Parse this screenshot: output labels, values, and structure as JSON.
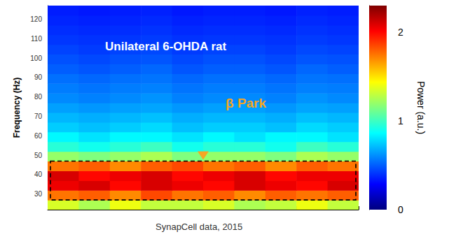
{
  "chart_data": {
    "type": "heatmap",
    "title": "Unilateral 6-OHDA rat",
    "band_label": "β Park",
    "band": [
      27,
      47
    ],
    "source": "SynapCell data, 2015",
    "y_label": "Frequency (Hz)",
    "xlim": [
      0,
      10
    ],
    "xticks": [
      0,
      2,
      4,
      6,
      8,
      10
    ],
    "ylim": [
      22,
      127
    ],
    "yticks": [
      30,
      40,
      50,
      60,
      70,
      80,
      90,
      100,
      110,
      120
    ],
    "tick_labels": "y",
    "grid": false,
    "time_bins": [
      0,
      1,
      2,
      3,
      4,
      5,
      6,
      7,
      8,
      9,
      10
    ],
    "frequency_bins": [
      22,
      27,
      32,
      37,
      42,
      47,
      52,
      57,
      62,
      67,
      72,
      77,
      82,
      87,
      92,
      97,
      102,
      107,
      112,
      117,
      122,
      127
    ],
    "cells": [
      [
        1.35,
        1.25,
        1.4,
        1.3,
        1.3,
        1.35,
        1.25,
        1.3,
        1.4,
        1.3
      ],
      [
        1.75,
        1.8,
        1.7,
        1.85,
        1.75,
        1.8,
        1.7,
        1.8,
        1.75,
        1.8
      ],
      [
        2.05,
        2.1,
        2.0,
        2.1,
        2.05,
        2.0,
        2.1,
        2.05,
        2.0,
        2.1
      ],
      [
        2.1,
        2.0,
        2.05,
        2.1,
        2.0,
        2.05,
        2.1,
        2.0,
        2.05,
        2.05
      ],
      [
        1.75,
        1.8,
        1.7,
        1.8,
        1.85,
        1.75,
        1.8,
        1.7,
        1.8,
        1.75
      ],
      [
        1.2,
        1.15,
        1.2,
        1.25,
        1.15,
        1.2,
        1.2,
        1.15,
        1.25,
        1.2
      ],
      [
        0.95,
        0.9,
        0.95,
        1.0,
        0.9,
        0.95,
        0.95,
        0.9,
        1.0,
        0.95
      ],
      [
        0.85,
        0.8,
        0.85,
        0.85,
        0.8,
        0.85,
        0.8,
        0.85,
        0.85,
        0.8
      ],
      [
        0.75,
        0.72,
        0.75,
        0.78,
        0.72,
        0.75,
        0.75,
        0.72,
        0.78,
        0.75
      ],
      [
        0.7,
        0.68,
        0.7,
        0.72,
        0.68,
        0.7,
        0.7,
        0.68,
        0.72,
        0.7
      ],
      [
        0.65,
        0.63,
        0.65,
        0.66,
        0.63,
        0.65,
        0.65,
        0.63,
        0.66,
        0.65
      ],
      [
        0.6,
        0.58,
        0.6,
        0.62,
        0.58,
        0.6,
        0.6,
        0.58,
        0.62,
        0.6
      ],
      [
        0.57,
        0.55,
        0.57,
        0.58,
        0.55,
        0.57,
        0.57,
        0.55,
        0.58,
        0.57
      ],
      [
        0.54,
        0.52,
        0.54,
        0.55,
        0.52,
        0.54,
        0.54,
        0.52,
        0.55,
        0.54
      ],
      [
        0.5,
        0.48,
        0.5,
        0.52,
        0.48,
        0.5,
        0.5,
        0.48,
        0.52,
        0.5
      ],
      [
        0.47,
        0.45,
        0.47,
        0.48,
        0.45,
        0.47,
        0.47,
        0.45,
        0.48,
        0.47
      ],
      [
        0.44,
        0.42,
        0.44,
        0.45,
        0.42,
        0.44,
        0.44,
        0.42,
        0.45,
        0.44
      ],
      [
        0.41,
        0.4,
        0.41,
        0.42,
        0.4,
        0.41,
        0.41,
        0.4,
        0.42,
        0.41
      ],
      [
        0.39,
        0.38,
        0.39,
        0.4,
        0.38,
        0.39,
        0.39,
        0.38,
        0.4,
        0.39
      ],
      [
        0.37,
        0.36,
        0.37,
        0.38,
        0.36,
        0.37,
        0.37,
        0.36,
        0.38,
        0.37
      ],
      [
        0.35,
        0.34,
        0.35,
        0.36,
        0.34,
        0.35,
        0.35,
        0.34,
        0.36,
        0.35
      ]
    ],
    "colorbar": {
      "label": "Power (a.u.)",
      "range": [
        0,
        2.3
      ],
      "ticks": [
        0,
        1,
        2
      ]
    }
  }
}
